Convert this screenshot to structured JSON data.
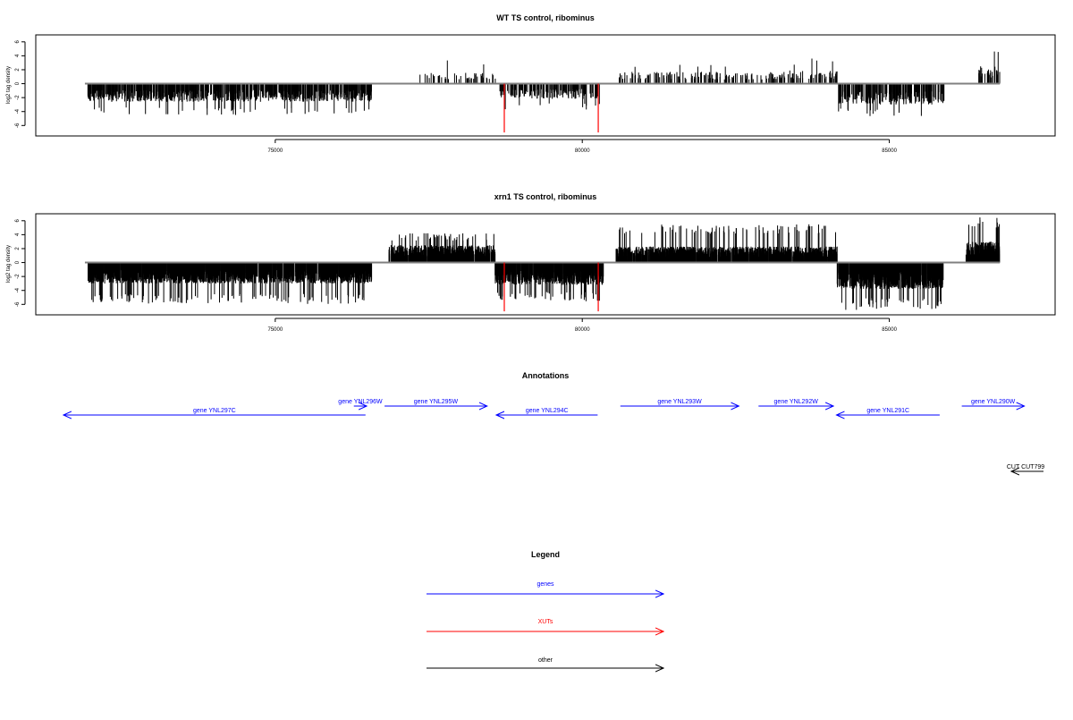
{
  "colors": {
    "genes": "#0000ff",
    "xuts": "#ff0000",
    "other": "#000000",
    "baseline": "#808080",
    "bars": "#000000"
  },
  "chart_data": [
    {
      "type": "bar",
      "title": "WT TS control, ribominus",
      "ylabel": "log2 tag density",
      "xlim": [
        71100,
        87700
      ],
      "ylim": [
        -7.5,
        7
      ],
      "xticks": [
        "75000",
        "80000",
        "85000"
      ],
      "xtick_values": [
        75000,
        80000,
        85000
      ],
      "yticks": [
        "6",
        "4",
        "2",
        "0",
        "-2",
        "-4",
        "-6"
      ],
      "ytick_values": [
        6,
        4,
        2,
        0,
        -2,
        -4,
        -6
      ],
      "baseline": {
        "x0": 71900,
        "x1": 86800,
        "y": 0
      },
      "regions": [
        {
          "x0": 71950,
          "x1": 76570,
          "sign": -1,
          "mag": 2.6,
          "peak": 4.5,
          "density": 20,
          "pattern": "bottom"
        },
        {
          "x0": 77300,
          "x1": 78600,
          "sign": 1,
          "mag": 1.6,
          "peak": 3.5,
          "density": 4,
          "pattern": "top"
        },
        {
          "x0": 78650,
          "x1": 80300,
          "sign": -1,
          "mag": 2.2,
          "peak": 3.7,
          "density": 12,
          "pattern": "bottom"
        },
        {
          "x0": 80550,
          "x1": 83150,
          "sign": 1,
          "mag": 1.7,
          "peak": 3.0,
          "density": 6,
          "pattern": "top"
        },
        {
          "x0": 83150,
          "x1": 84150,
          "sign": 1,
          "mag": 1.9,
          "peak": 3.6,
          "density": 8,
          "pattern": "top"
        },
        {
          "x0": 84150,
          "x1": 85900,
          "sign": -1,
          "mag": 3.0,
          "peak": 4.7,
          "density": 16,
          "pattern": "bottom"
        },
        {
          "x0": 86400,
          "x1": 86800,
          "sign": 1,
          "mag": 2.5,
          "peak": 5.1,
          "density": 8,
          "pattern": "top"
        }
      ],
      "xut_marks": [
        {
          "x": 78730,
          "y": -7
        },
        {
          "x": 80260,
          "y": -7
        }
      ]
    },
    {
      "type": "bar",
      "title": "xrn1 TS control, ribominus",
      "ylabel": "log2 tag density",
      "xlim": [
        71100,
        87700
      ],
      "ylim": [
        -7.5,
        7
      ],
      "xticks": [
        "75000",
        "80000",
        "85000"
      ],
      "xtick_values": [
        75000,
        80000,
        85000
      ],
      "yticks": [
        "6",
        "4",
        "2",
        "0",
        "-2",
        "-4",
        "-6"
      ],
      "ytick_values": [
        6,
        4,
        2,
        0,
        -2,
        -4,
        -6
      ],
      "baseline": {
        "x0": 71900,
        "x1": 86800,
        "y": 0
      },
      "regions": [
        {
          "x0": 71950,
          "x1": 76570,
          "sign": -1,
          "mag": 3.0,
          "peak": 6.0,
          "density": 45,
          "pattern": "bottom"
        },
        {
          "x0": 76850,
          "x1": 78580,
          "sign": 1,
          "mag": 2.5,
          "peak": 4.2,
          "density": 40,
          "pattern": "top"
        },
        {
          "x0": 78580,
          "x1": 80350,
          "sign": -1,
          "mag": 3.2,
          "peak": 5.6,
          "density": 45,
          "pattern": "bottom"
        },
        {
          "x0": 80550,
          "x1": 84150,
          "sign": 1,
          "mag": 2.3,
          "peak": 5.5,
          "density": 40,
          "pattern": "top"
        },
        {
          "x0": 84150,
          "x1": 85880,
          "sign": -1,
          "mag": 3.8,
          "peak": 6.8,
          "density": 50,
          "pattern": "bottom"
        },
        {
          "x0": 86250,
          "x1": 86800,
          "sign": 1,
          "mag": 3.0,
          "peak": 6.5,
          "density": 40,
          "pattern": "top"
        }
      ],
      "xut_marks": [
        {
          "x": 78730,
          "y": -7
        },
        {
          "x": 80260,
          "y": -7
        }
      ]
    }
  ],
  "annotations": {
    "title": "Annotations",
    "genes": [
      {
        "label": "gene YNL297C",
        "dir": "left",
        "x0": 71550,
        "x1": 76470,
        "row": 2
      },
      {
        "label": "gene YNL296W",
        "dir": "right",
        "x0": 76280,
        "x1": 76490,
        "row": 1
      },
      {
        "label": "gene YNL295W",
        "dir": "right",
        "x0": 76780,
        "x1": 78450,
        "row": 1
      },
      {
        "label": "gene YNL294C",
        "dir": "left",
        "x0": 78600,
        "x1": 80250,
        "row": 2
      },
      {
        "label": "gene YNL293W",
        "dir": "right",
        "x0": 80620,
        "x1": 82550,
        "row": 1
      },
      {
        "label": "gene YNL292W",
        "dir": "right",
        "x0": 82870,
        "x1": 84090,
        "row": 1
      },
      {
        "label": "gene YNL291C",
        "dir": "left",
        "x0": 84140,
        "x1": 85820,
        "row": 2
      },
      {
        "label": "gene YNL290W",
        "dir": "right",
        "x0": 86180,
        "x1": 87200,
        "row": 1
      }
    ],
    "cut": {
      "label": "CUT CUT799",
      "dir": "left"
    }
  },
  "legend": {
    "title": "Legend",
    "items": [
      {
        "label": "genes",
        "color": "#0000ff"
      },
      {
        "label": "XUTs",
        "color": "#ff0000"
      },
      {
        "label": "other",
        "color": "#000000"
      }
    ]
  }
}
